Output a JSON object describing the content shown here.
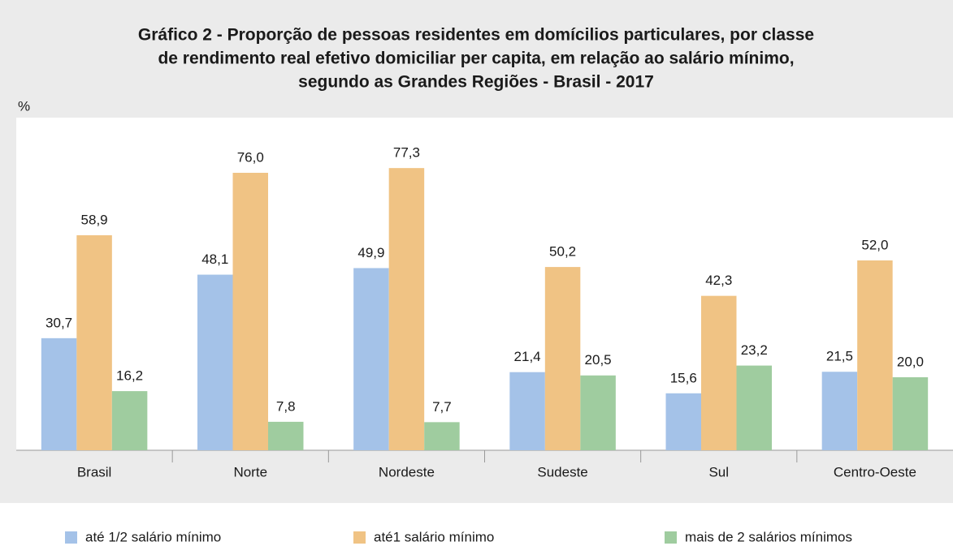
{
  "chart_data": {
    "type": "bar",
    "title": [
      "Gráfico 2 - Proporção de pessoas residentes em domícilios particulares, por classe",
      "de rendimento real efetivo domiciliar per capita, em relação ao salário mínimo,",
      "segundo as Grandes Regiões - Brasil - 2017"
    ],
    "y_label": "%",
    "categories": [
      "Brasil",
      "Norte",
      "Nordeste",
      "Sudeste",
      "Sul",
      "Centro-Oeste"
    ],
    "series": [
      {
        "name": "até 1/2 salário mínimo",
        "color": "#a4c2e8",
        "values": [
          30.7,
          48.1,
          49.9,
          21.4,
          15.6,
          21.5
        ],
        "value_labels": [
          "30,7",
          "48,1",
          "49,9",
          "21,4",
          "15,6",
          "21,5"
        ]
      },
      {
        "name": "até1 salário mínimo",
        "color": "#f0c384",
        "values": [
          58.9,
          76.0,
          77.3,
          50.2,
          42.3,
          52.0
        ],
        "value_labels": [
          "58,9",
          "76,0",
          "77,3",
          "50,2",
          "42,3",
          "52,0"
        ]
      },
      {
        "name": "mais de 2 salários mínimos",
        "color": "#9fcc9f",
        "values": [
          16.2,
          7.8,
          7.7,
          20.5,
          23.2,
          20.0
        ],
        "value_labels": [
          "16,2",
          "7,8",
          "7,7",
          "20,5",
          "23,2",
          "20,0"
        ]
      }
    ],
    "ylim": [
      0,
      80
    ],
    "legend": "bottom"
  }
}
